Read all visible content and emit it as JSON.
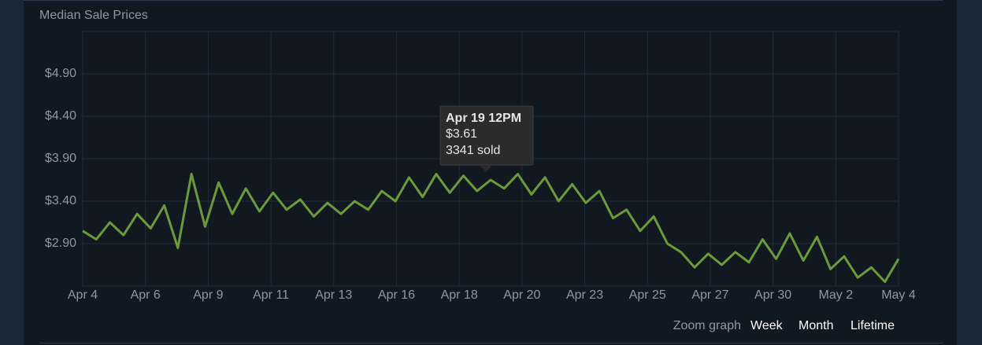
{
  "chart_data": {
    "type": "line",
    "title": "Median Sale Prices",
    "x": [
      0,
      0.5,
      1,
      1.5,
      2,
      2.5,
      3,
      3.5,
      4,
      4.5,
      5,
      5.5,
      6,
      6.5,
      7,
      7.5,
      8,
      8.5,
      9,
      9.5,
      10,
      10.5,
      11,
      11.5,
      12,
      12.5,
      13,
      13.5,
      14,
      14.5,
      15,
      15.5,
      16,
      16.5,
      17,
      17.5,
      18,
      18.5,
      19,
      19.5,
      20,
      20.5,
      21,
      21.5,
      22,
      22.5,
      23,
      23.5,
      24,
      24.5,
      25,
      25.5,
      26,
      26.5,
      27,
      27.5,
      28,
      28.5,
      29,
      29.5,
      30
    ],
    "series": [
      {
        "color": "#6b9a3b",
        "values": [
          3.05,
          2.95,
          3.15,
          3.0,
          3.25,
          3.08,
          3.35,
          2.85,
          3.72,
          3.1,
          3.62,
          3.25,
          3.55,
          3.28,
          3.5,
          3.3,
          3.42,
          3.22,
          3.38,
          3.25,
          3.4,
          3.3,
          3.52,
          3.4,
          3.68,
          3.45,
          3.72,
          3.5,
          3.7,
          3.52,
          3.65,
          3.55,
          3.72,
          3.48,
          3.68,
          3.4,
          3.6,
          3.38,
          3.52,
          3.2,
          3.3,
          3.05,
          3.22,
          2.9,
          2.8,
          2.62,
          2.78,
          2.65,
          2.8,
          2.68,
          2.95,
          2.72,
          3.02,
          2.7,
          2.98,
          2.6,
          2.75,
          2.5,
          2.62,
          2.45,
          2.72
        ]
      }
    ],
    "xlim": [
      0,
      30
    ],
    "xticks": [
      {
        "value": 0,
        "label": "Apr 4"
      },
      {
        "value": 2.3077,
        "label": "Apr 6"
      },
      {
        "value": 4.6154,
        "label": "Apr 9"
      },
      {
        "value": 6.9231,
        "label": "Apr 11"
      },
      {
        "value": 9.2308,
        "label": "Apr 13"
      },
      {
        "value": 11.5385,
        "label": "Apr 16"
      },
      {
        "value": 13.8462,
        "label": "Apr 18"
      },
      {
        "value": 16.1538,
        "label": "Apr 20"
      },
      {
        "value": 18.4615,
        "label": "Apr 23"
      },
      {
        "value": 20.7692,
        "label": "Apr 25"
      },
      {
        "value": 23.0769,
        "label": "Apr 27"
      },
      {
        "value": 25.3846,
        "label": "Apr 30"
      },
      {
        "value": 27.6923,
        "label": "May 2"
      },
      {
        "value": 30,
        "label": "May 4"
      }
    ],
    "ylim": [
      2.4,
      5.4
    ],
    "yticks": [
      {
        "value": 2.9,
        "label": "$2.90"
      },
      {
        "value": 3.4,
        "label": "$3.40"
      },
      {
        "value": 3.9,
        "label": "$3.90"
      },
      {
        "value": 4.4,
        "label": "$4.40"
      },
      {
        "value": 4.9,
        "label": "$4.90"
      }
    ],
    "grid": true,
    "tooltip": {
      "date": "Apr 19 12PM",
      "price": "$3.61",
      "sold": "3341 sold"
    },
    "zoom": {
      "label": "Zoom graph",
      "options": [
        "Week",
        "Month",
        "Lifetime"
      ]
    }
  }
}
